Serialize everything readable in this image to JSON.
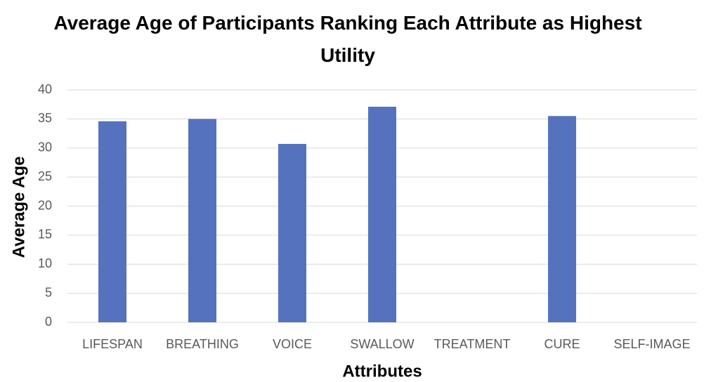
{
  "chart_data": {
    "type": "bar",
    "title": "Average Age of Participants Ranking Each Attribute as Highest Utility",
    "x_label": "Attributes",
    "y_label": "Average Age",
    "categories": [
      "LIFESPAN",
      "BREATHING",
      "VOICE",
      "SWALLOW",
      "TREATMENT",
      "CURE",
      "SELF-IMAGE"
    ],
    "values": [
      34.6,
      35.0,
      30.7,
      37.1,
      null,
      35.5,
      null
    ],
    "color": "#5472be",
    "ylim": [
      0,
      40
    ],
    "yticks": [
      0,
      5,
      10,
      15,
      20,
      25,
      30,
      35,
      40
    ],
    "grid": true
  }
}
